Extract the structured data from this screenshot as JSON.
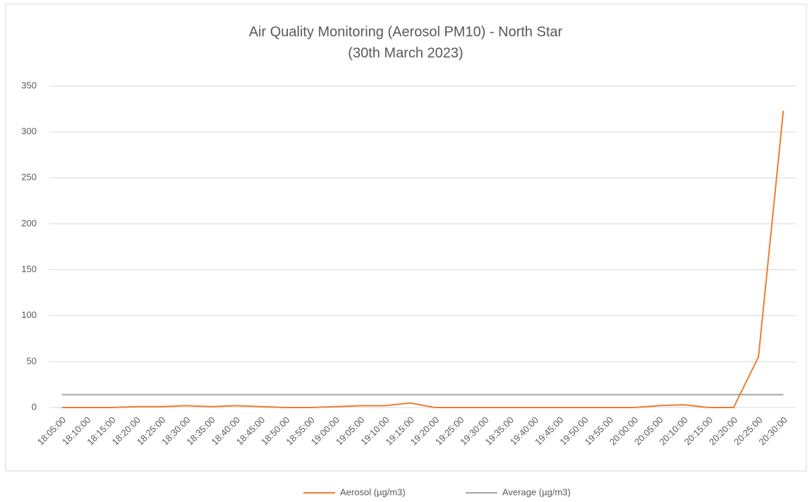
{
  "chart_data": {
    "type": "line",
    "title": "Air Quality Monitoring (Aerosol PM10) - North Star",
    "subtitle": "(30th March 2023)",
    "categories": [
      "18:05:00",
      "18:10:00",
      "18:15:00",
      "18:20:00",
      "18:25:00",
      "18:30:00",
      "18:35:00",
      "18:40:00",
      "18:45:00",
      "18:50:00",
      "18:55:00",
      "19:00:00",
      "19:05:00",
      "19:10:00",
      "19:15:00",
      "19:20:00",
      "19:25:00",
      "19:30:00",
      "19:35:00",
      "19:40:00",
      "19:45:00",
      "19:50:00",
      "19:55:00",
      "20:00:00",
      "20:05:00",
      "20:10:00",
      "20:15:00",
      "20:20:00",
      "20:25:00",
      "20:30:00"
    ],
    "series": [
      {
        "name": "Aerosol (µg/m3)",
        "color": "#ed7d31",
        "values": [
          0,
          0,
          0,
          1,
          1,
          2,
          1,
          2,
          1,
          0,
          0,
          1,
          2,
          2,
          5,
          0,
          0,
          0,
          0,
          0,
          0,
          0,
          0,
          0,
          2,
          3,
          0,
          0,
          55,
          323
        ]
      },
      {
        "name": "Average (µg/m3)",
        "color": "#a5a5a5",
        "values": [
          14,
          14,
          14,
          14,
          14,
          14,
          14,
          14,
          14,
          14,
          14,
          14,
          14,
          14,
          14,
          14,
          14,
          14,
          14,
          14,
          14,
          14,
          14,
          14,
          14,
          14,
          14,
          14,
          14,
          14
        ]
      }
    ],
    "ylim": [
      0,
      350
    ],
    "yticks": [
      0,
      50,
      100,
      150,
      200,
      250,
      300,
      350
    ],
    "grid": true,
    "legend": "bottom"
  }
}
